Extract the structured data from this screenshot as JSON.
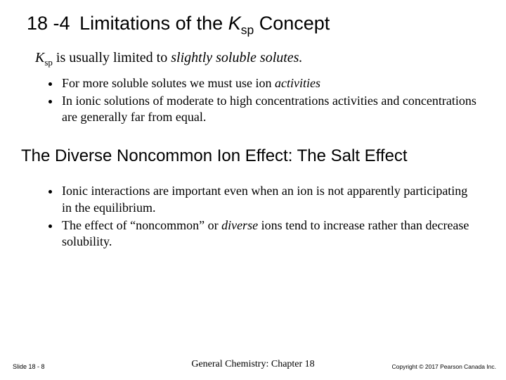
{
  "title": {
    "prefix": "18 -4",
    "before_ksp": "Limitations of the ",
    "k_letter": "K",
    "sp": "sp",
    "after_ksp": " Concept"
  },
  "intro": {
    "k_letter": "K",
    "sp": "sp",
    "mid": " is usually limited to ",
    "emph": "slightly soluble solutes."
  },
  "bullets_a": {
    "b1_a": "For more soluble solutes we must use ion ",
    "b1_em": "activities",
    "b2": "In ionic solutions of moderate to high concentrations activities and concentrations are generally far from equal."
  },
  "subheading": "The Diverse Noncommon Ion Effect: The Salt Effect",
  "bullets_b": {
    "b1": "Ionic interactions are important even when an ion is not apparently participating in the equilibrium.",
    "b2_a": "The effect of “noncommon” or ",
    "b2_em": "diverse",
    "b2_b": " ions tend to increase rather than decrease solubility."
  },
  "footer": {
    "left": "Slide 18 - 8",
    "center": "General Chemistry: Chapter 18",
    "right": "Copyright © 2017 Pearson Canada Inc."
  }
}
